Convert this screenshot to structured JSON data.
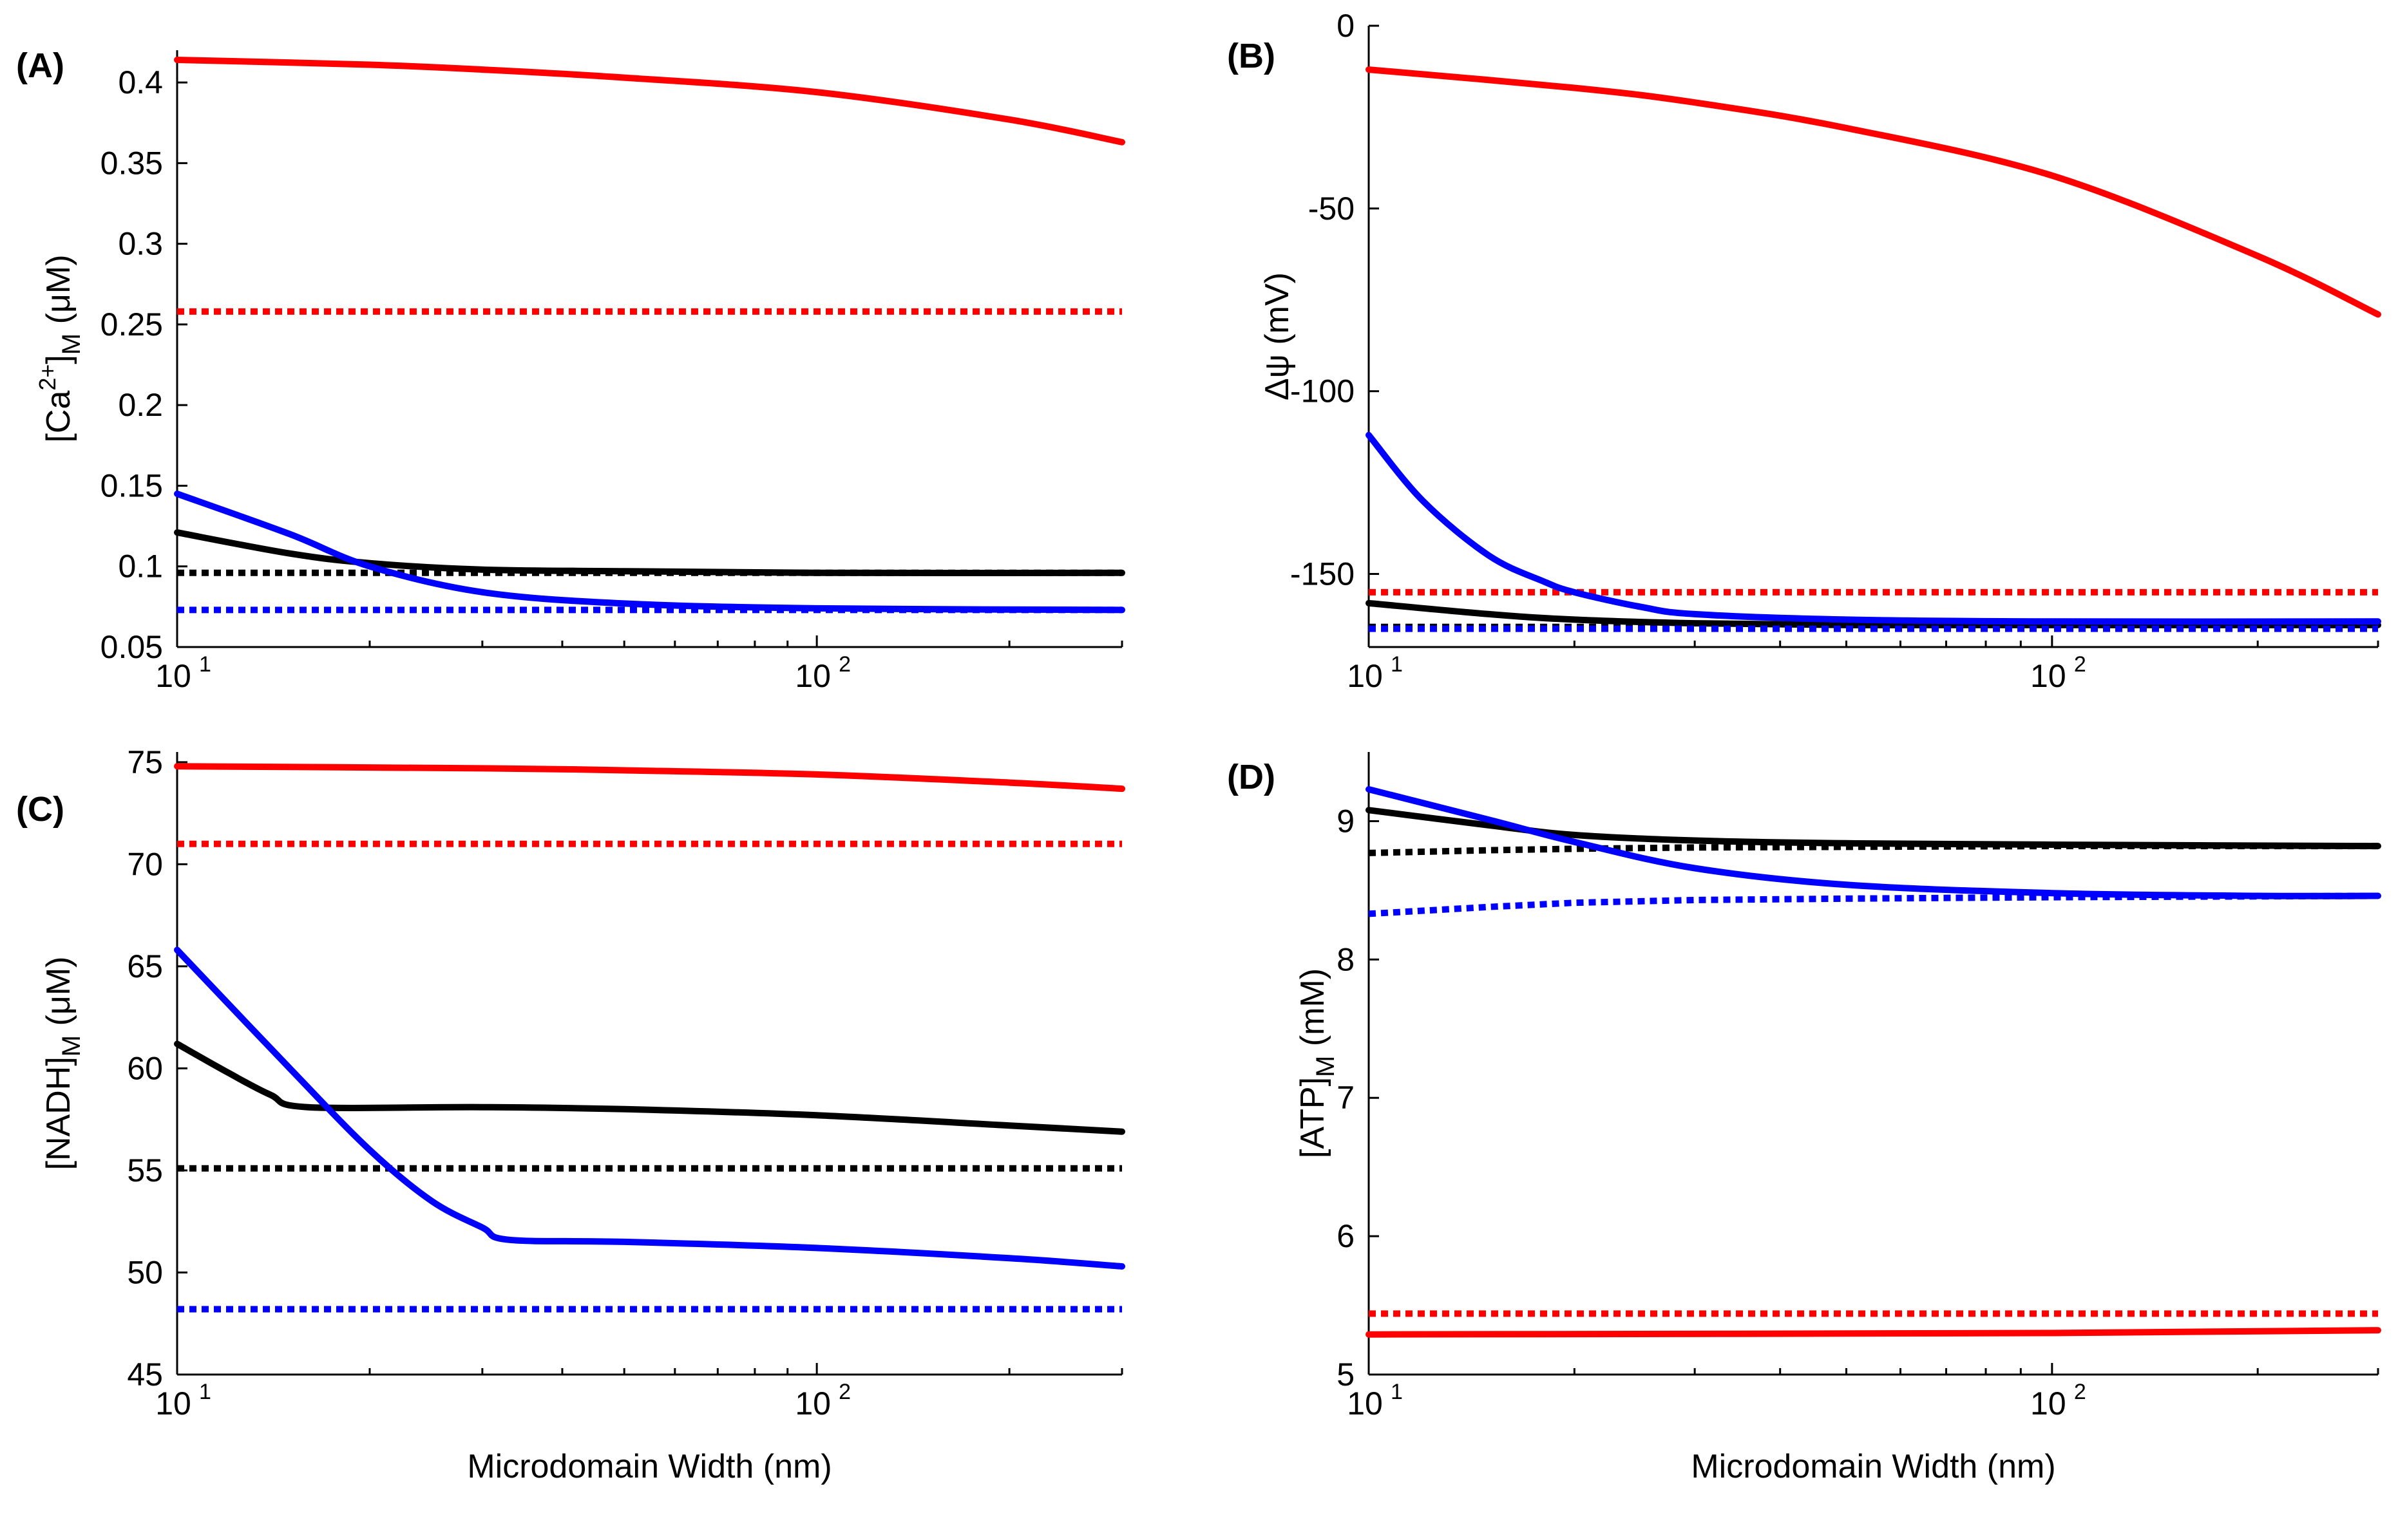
{
  "chart_data": [
    {
      "panel": "(A)",
      "type": "line",
      "xlabel": "",
      "ylabel": "[Ca2+]M (μM)",
      "ylabel_parts": {
        "prefix": "[Ca",
        "sup": "2+",
        "mid": "]",
        "sub": "M",
        "suffix": " (μM)"
      },
      "xscale": "log",
      "xlim": [
        10,
        300
      ],
      "ylim": [
        0.05,
        0.42
      ],
      "yticks": [
        "0.05",
        "0.1",
        "0.15",
        "0.2",
        "0.25",
        "0.3",
        "0.35",
        "0.4"
      ],
      "ytick_values": [
        0.05,
        0.1,
        0.15,
        0.2,
        0.25,
        0.3,
        0.35,
        0.4
      ],
      "series": [
        {
          "color": "#ff0000",
          "style": "solid",
          "x": [
            10,
            20,
            30,
            50,
            100,
            200,
            300
          ],
          "y": [
            0.414,
            0.411,
            0.408,
            0.403,
            0.394,
            0.377,
            0.363
          ]
        },
        {
          "color": "#ff0000",
          "style": "dotted",
          "x": [
            10,
            300
          ],
          "y": [
            0.258,
            0.258
          ]
        },
        {
          "color": "#000000",
          "style": "solid",
          "x": [
            10,
            15,
            20,
            30,
            50,
            100,
            300
          ],
          "y": [
            0.121,
            0.108,
            0.102,
            0.098,
            0.097,
            0.096,
            0.096
          ]
        },
        {
          "color": "#000000",
          "style": "dotted",
          "x": [
            10,
            300
          ],
          "y": [
            0.096,
            0.096
          ]
        },
        {
          "color": "#0000ff",
          "style": "solid",
          "x": [
            10,
            15,
            20,
            30,
            50,
            100,
            300
          ],
          "y": [
            0.145,
            0.12,
            0.1,
            0.084,
            0.077,
            0.074,
            0.073
          ]
        },
        {
          "color": "#0000ff",
          "style": "dotted",
          "x": [
            10,
            300
          ],
          "y": [
            0.073,
            0.073
          ]
        }
      ]
    },
    {
      "panel": "(B)",
      "type": "line",
      "xlabel": "",
      "ylabel": "Δψ (mV)",
      "xscale": "log",
      "xlim": [
        10,
        300
      ],
      "ylim": [
        -170,
        0
      ],
      "yticks": [
        "0",
        "-50",
        "-100",
        "-150"
      ],
      "ytick_values": [
        0,
        -50,
        -100,
        -150
      ],
      "series": [
        {
          "color": "#ff0000",
          "style": "solid",
          "x": [
            10,
            20,
            30,
            50,
            100,
            200,
            300
          ],
          "y": [
            -12,
            -17,
            -21,
            -28,
            -41,
            -63,
            -79
          ]
        },
        {
          "color": "#ff0000",
          "style": "dotted",
          "x": [
            10,
            300
          ],
          "y": [
            -155,
            -155
          ]
        },
        {
          "color": "#000000",
          "style": "solid",
          "x": [
            10,
            15,
            20,
            30,
            50,
            100,
            300
          ],
          "y": [
            -158,
            -161,
            -162.5,
            -163.5,
            -164,
            -164,
            -164
          ]
        },
        {
          "color": "#000000",
          "style": "dotted",
          "x": [
            10,
            300
          ],
          "y": [
            -164.5,
            -164.5
          ]
        },
        {
          "color": "#0000ff",
          "style": "solid",
          "x": [
            10,
            12,
            15,
            18,
            20,
            25,
            30,
            50,
            100,
            300
          ],
          "y": [
            -112,
            -130,
            -145,
            -152,
            -155,
            -159,
            -161,
            -162.5,
            -163,
            -163
          ]
        },
        {
          "color": "#0000ff",
          "style": "dotted",
          "x": [
            10,
            300
          ],
          "y": [
            -165,
            -165
          ]
        }
      ]
    },
    {
      "panel": "(C)",
      "type": "line",
      "xlabel": "Microdomain Width (nm)",
      "ylabel": "[NADH]M (μM)",
      "ylabel_parts": {
        "prefix": "[NADH",
        "sup": "",
        "mid": "]",
        "sub": "M",
        "suffix": " (μM)"
      },
      "xscale": "log",
      "xlim": [
        10,
        300
      ],
      "ylim": [
        45,
        75.5
      ],
      "yticks": [
        "45",
        "50",
        "55",
        "60",
        "65",
        "70",
        "75"
      ],
      "ytick_values": [
        45,
        50,
        55,
        60,
        65,
        70,
        75
      ],
      "series": [
        {
          "color": "#ff0000",
          "style": "solid",
          "x": [
            10,
            30,
            50,
            100,
            200,
            300
          ],
          "y": [
            74.8,
            74.7,
            74.6,
            74.4,
            74,
            73.7
          ]
        },
        {
          "color": "#ff0000",
          "style": "dotted",
          "x": [
            10,
            300
          ],
          "y": [
            71,
            71
          ]
        },
        {
          "color": "#000000",
          "style": "solid",
          "x": [
            10,
            12,
            14,
            16,
            30,
            50,
            100,
            200,
            300
          ],
          "y": [
            61.2,
            59.8,
            58.7,
            58.1,
            58.1,
            58,
            57.7,
            57.2,
            56.9
          ]
        },
        {
          "color": "#000000",
          "style": "dotted",
          "x": [
            10,
            300
          ],
          "y": [
            55.1,
            55.1
          ]
        },
        {
          "color": "#0000ff",
          "style": "solid",
          "x": [
            10,
            15,
            20,
            25,
            30,
            33,
            50,
            100,
            200,
            300
          ],
          "y": [
            65.8,
            60,
            56,
            53.5,
            52.2,
            51.6,
            51.5,
            51.2,
            50.7,
            50.3
          ]
        },
        {
          "color": "#0000ff",
          "style": "dotted",
          "x": [
            10,
            300
          ],
          "y": [
            48.2,
            48.2
          ]
        }
      ]
    },
    {
      "panel": "(D)",
      "type": "line",
      "xlabel": "Microdomain Width (nm)",
      "ylabel": "[ATP]M (mM)",
      "ylabel_parts": {
        "prefix": "[ATP",
        "sup": "",
        "mid": "]",
        "sub": "M",
        "suffix": " (mM)"
      },
      "xscale": "log",
      "xlim": [
        10,
        300
      ],
      "ylim": [
        5,
        9.5
      ],
      "yticks": [
        "5",
        "6",
        "7",
        "8",
        "9"
      ],
      "ytick_values": [
        5,
        6,
        7,
        8,
        9
      ],
      "series": [
        {
          "color": "#ff0000",
          "style": "solid",
          "x": [
            10,
            100,
            300
          ],
          "y": [
            5.29,
            5.3,
            5.32
          ]
        },
        {
          "color": "#ff0000",
          "style": "dotted",
          "x": [
            10,
            300
          ],
          "y": [
            5.44,
            5.44
          ]
        },
        {
          "color": "#000000",
          "style": "solid",
          "x": [
            10,
            15,
            20,
            30,
            50,
            100,
            300
          ],
          "y": [
            9.08,
            8.97,
            8.9,
            8.86,
            8.84,
            8.83,
            8.82
          ]
        },
        {
          "color": "#000000",
          "style": "dotted",
          "x": [
            10,
            15,
            20,
            30,
            100,
            300
          ],
          "y": [
            8.77,
            8.79,
            8.8,
            8.81,
            8.82,
            8.82
          ]
        },
        {
          "color": "#0000ff",
          "style": "solid",
          "x": [
            10,
            15,
            20,
            30,
            50,
            100,
            200,
            300
          ],
          "y": [
            9.23,
            9.01,
            8.85,
            8.66,
            8.54,
            8.48,
            8.46,
            8.46
          ]
        },
        {
          "color": "#0000ff",
          "style": "dotted",
          "x": [
            10,
            15,
            20,
            30,
            50,
            100,
            300
          ],
          "y": [
            8.33,
            8.38,
            8.41,
            8.43,
            8.44,
            8.45,
            8.46
          ]
        }
      ]
    }
  ],
  "x_tick_labels": {
    "base": "10",
    "exponents": [
      "1",
      "2"
    ],
    "values": [
      10,
      100
    ]
  }
}
